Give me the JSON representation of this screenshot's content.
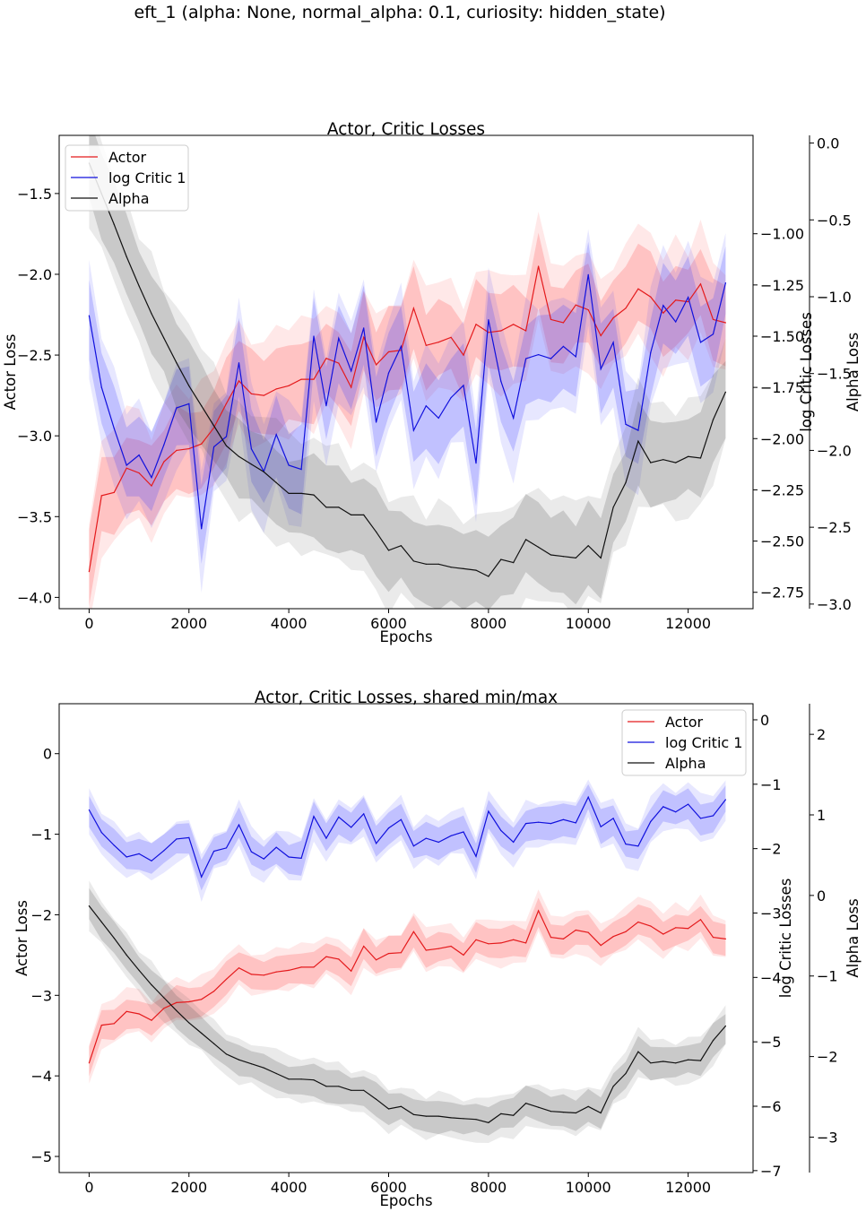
{
  "suptitle": "eft_1 (alpha: None, normal_alpha: 0.1, curiosity: hidden_state)",
  "colors": {
    "actor": "#e41a1c",
    "critic": "#1010dd",
    "alpha": "#111111"
  },
  "chart_data": [
    {
      "type": "line",
      "title": "Actor, Critic Losses",
      "xlabel": "Epochs",
      "ylabel": "Actor Loss",
      "y2label": "log Critic Losses",
      "y3label": "Alpha Loss",
      "xlim": [
        -600,
        13300
      ],
      "ylim": [
        -4.07,
        -1.14
      ],
      "y2lim": [
        -2.83,
        -0.52
      ],
      "y3lim": [
        -3.03,
        0.05
      ],
      "xticks": [
        0,
        2000,
        4000,
        6000,
        8000,
        10000,
        12000
      ],
      "yticks": [
        -4.0,
        -3.5,
        -3.0,
        -2.5,
        -2.0,
        -1.5
      ],
      "y2ticks": [
        -2.75,
        -2.5,
        -2.25,
        -2.0,
        -1.75,
        -1.5,
        -1.25,
        -1.0
      ],
      "y3ticks": [
        -3.0,
        -2.5,
        -2.0,
        -1.5,
        -1.0,
        -0.5,
        0.0
      ],
      "xtick_labels": [
        "0",
        "2000",
        "4000",
        "6000",
        "8000",
        "10000",
        "12000"
      ],
      "ytick_labels": [
        "−4.0",
        "−3.5",
        "−3.0",
        "−2.5",
        "−2.0",
        "−1.5"
      ],
      "y2tick_labels": [
        "−2.75",
        "−2.50",
        "−2.25",
        "−2.00",
        "−1.75",
        "−1.50",
        "−1.25",
        "−1.00"
      ],
      "y3tick_labels": [
        "−3.0",
        "−2.5",
        "−2.0",
        "−1.5",
        "−1.0",
        "−0.5",
        "0.0"
      ],
      "legend_position": "upper-left",
      "legend": [
        "Actor",
        "log Critic 1",
        "Alpha"
      ],
      "x": [
        0,
        250,
        500,
        750,
        1000,
        1250,
        1500,
        1750,
        2000,
        2250,
        2500,
        2750,
        3000,
        3250,
        3500,
        3750,
        4000,
        4250,
        4500,
        4750,
        5000,
        5250,
        5500,
        5750,
        6000,
        6250,
        6500,
        6750,
        7000,
        7250,
        7500,
        7750,
        8000,
        8250,
        8500,
        8750,
        9000,
        9250,
        9500,
        9750,
        10000,
        10250,
        10500,
        10750,
        11000,
        11250,
        11500,
        11750,
        12000,
        12250,
        12500,
        12750
      ],
      "series": [
        {
          "name": "Actor",
          "axis": "left",
          "values": [
            -3.84,
            -3.37,
            -3.35,
            -3.2,
            -3.23,
            -3.31,
            -3.16,
            -3.09,
            -3.08,
            -3.05,
            -2.95,
            -2.8,
            -2.66,
            -2.74,
            -2.75,
            -2.71,
            -2.69,
            -2.65,
            -2.65,
            -2.52,
            -2.55,
            -2.7,
            -2.39,
            -2.56,
            -2.48,
            -2.47,
            -2.21,
            -2.44,
            -2.42,
            -2.39,
            -2.5,
            -2.31,
            -2.36,
            -2.35,
            -2.31,
            -2.35,
            -1.95,
            -2.28,
            -2.3,
            -2.19,
            -2.22,
            -2.38,
            -2.27,
            -2.21,
            -2.09,
            -2.14,
            -2.24,
            -2.16,
            -2.17,
            -2.06,
            -2.28,
            -2.3
          ]
        },
        {
          "name": "log Critic 1",
          "axis": "right",
          "values": [
            -1.4,
            -1.75,
            -1.95,
            -2.13,
            -2.08,
            -2.19,
            -2.03,
            -1.85,
            -1.83,
            -2.44,
            -2.04,
            -1.99,
            -1.63,
            -2.05,
            -2.16,
            -1.98,
            -2.13,
            -2.15,
            -1.5,
            -1.84,
            -1.51,
            -1.67,
            -1.46,
            -1.92,
            -1.68,
            -1.55,
            -1.96,
            -1.84,
            -1.9,
            -1.8,
            -1.74,
            -2.12,
            -1.42,
            -1.72,
            -1.9,
            -1.61,
            -1.59,
            -1.61,
            -1.55,
            -1.6,
            -1.2,
            -1.66,
            -1.53,
            -1.93,
            -1.96,
            -1.58,
            -1.35,
            -1.43,
            -1.31,
            -1.53,
            -1.49,
            -1.24
          ]
        },
        {
          "name": "Alpha",
          "axis": "right2",
          "values": [
            -0.13,
            -0.33,
            -0.53,
            -0.74,
            -0.93,
            -1.11,
            -1.27,
            -1.43,
            -1.58,
            -1.71,
            -1.84,
            -1.97,
            -2.04,
            -2.09,
            -2.14,
            -2.21,
            -2.28,
            -2.28,
            -2.29,
            -2.37,
            -2.37,
            -2.42,
            -2.42,
            -2.53,
            -2.65,
            -2.62,
            -2.72,
            -2.74,
            -2.74,
            -2.76,
            -2.77,
            -2.78,
            -2.82,
            -2.71,
            -2.73,
            -2.58,
            -2.63,
            -2.68,
            -2.69,
            -2.7,
            -2.62,
            -2.7,
            -2.37,
            -2.21,
            -1.94,
            -2.08,
            -2.06,
            -2.08,
            -2.04,
            -2.05,
            -1.8,
            -1.62
          ]
        }
      ]
    },
    {
      "type": "line",
      "title": "Actor, Critic Losses, shared min/max",
      "xlabel": "Epochs",
      "ylabel": "Actor Loss",
      "y2label": "log Critic Losses",
      "y3label": "Alpha Loss",
      "xlim": [
        -600,
        13300
      ],
      "ylim": [
        -5.2,
        0.62
      ],
      "y2lim": [
        -7.03,
        0.25
      ],
      "y3lim": [
        -3.44,
        2.38
      ],
      "xticks": [
        0,
        2000,
        4000,
        6000,
        8000,
        10000,
        12000
      ],
      "yticks": [
        -5,
        -4,
        -3,
        -2,
        -1,
        0
      ],
      "y2ticks": [
        -7,
        -6,
        -5,
        -4,
        -3,
        -2,
        -1,
        0
      ],
      "y3ticks": [
        -3,
        -2,
        -1,
        0,
        1,
        2
      ],
      "xtick_labels": [
        "0",
        "2000",
        "4000",
        "6000",
        "8000",
        "10000",
        "12000"
      ],
      "ytick_labels": [
        "−5",
        "−4",
        "−3",
        "−2",
        "−1",
        "0"
      ],
      "y2tick_labels": [
        "−7",
        "−6",
        "−5",
        "−4",
        "−3",
        "−2",
        "−1",
        "0"
      ],
      "y3tick_labels": [
        "−3",
        "−2",
        "−1",
        "0",
        "1",
        "2"
      ],
      "legend_position": "upper-right",
      "legend": [
        "Actor",
        "log Critic 1",
        "Alpha"
      ],
      "x": [
        0,
        250,
        500,
        750,
        1000,
        1250,
        1500,
        1750,
        2000,
        2250,
        2500,
        2750,
        3000,
        3250,
        3500,
        3750,
        4000,
        4250,
        4500,
        4750,
        5000,
        5250,
        5500,
        5750,
        6000,
        6250,
        6500,
        6750,
        7000,
        7250,
        7500,
        7750,
        8000,
        8250,
        8500,
        8750,
        9000,
        9250,
        9500,
        9750,
        10000,
        10250,
        10500,
        10750,
        11000,
        11250,
        11500,
        11750,
        12000,
        12250,
        12500,
        12750
      ],
      "series": [
        {
          "name": "Actor",
          "axis": "left",
          "values": [
            -3.84,
            -3.37,
            -3.35,
            -3.2,
            -3.23,
            -3.31,
            -3.16,
            -3.09,
            -3.08,
            -3.05,
            -2.95,
            -2.8,
            -2.66,
            -2.74,
            -2.75,
            -2.71,
            -2.69,
            -2.65,
            -2.65,
            -2.52,
            -2.55,
            -2.7,
            -2.39,
            -2.56,
            -2.48,
            -2.47,
            -2.21,
            -2.44,
            -2.42,
            -2.39,
            -2.5,
            -2.31,
            -2.36,
            -2.35,
            -2.31,
            -2.35,
            -1.95,
            -2.28,
            -2.3,
            -2.19,
            -2.22,
            -2.38,
            -2.27,
            -2.21,
            -2.09,
            -2.14,
            -2.24,
            -2.16,
            -2.17,
            -2.06,
            -2.28,
            -2.3
          ]
        },
        {
          "name": "log Critic 1",
          "axis": "right",
          "values": [
            -1.4,
            -1.75,
            -1.95,
            -2.13,
            -2.08,
            -2.19,
            -2.03,
            -1.85,
            -1.83,
            -2.44,
            -2.04,
            -1.99,
            -1.63,
            -2.05,
            -2.16,
            -1.98,
            -2.13,
            -2.15,
            -1.5,
            -1.84,
            -1.51,
            -1.67,
            -1.46,
            -1.92,
            -1.68,
            -1.55,
            -1.96,
            -1.84,
            -1.9,
            -1.8,
            -1.74,
            -2.12,
            -1.42,
            -1.72,
            -1.9,
            -1.61,
            -1.59,
            -1.61,
            -1.55,
            -1.6,
            -1.2,
            -1.66,
            -1.53,
            -1.93,
            -1.96,
            -1.58,
            -1.35,
            -1.43,
            -1.31,
            -1.53,
            -1.49,
            -1.24
          ]
        },
        {
          "name": "Alpha",
          "axis": "right2",
          "values": [
            -0.13,
            -0.33,
            -0.53,
            -0.74,
            -0.93,
            -1.11,
            -1.27,
            -1.43,
            -1.58,
            -1.71,
            -1.84,
            -1.97,
            -2.04,
            -2.09,
            -2.14,
            -2.21,
            -2.28,
            -2.28,
            -2.29,
            -2.37,
            -2.37,
            -2.42,
            -2.42,
            -2.53,
            -2.65,
            -2.62,
            -2.72,
            -2.74,
            -2.74,
            -2.76,
            -2.77,
            -2.78,
            -2.82,
            -2.71,
            -2.73,
            -2.58,
            -2.63,
            -2.68,
            -2.69,
            -2.7,
            -2.62,
            -2.7,
            -2.37,
            -2.21,
            -1.94,
            -2.08,
            -2.06,
            -2.08,
            -2.04,
            -2.05,
            -1.8,
            -1.62
          ]
        }
      ]
    }
  ]
}
